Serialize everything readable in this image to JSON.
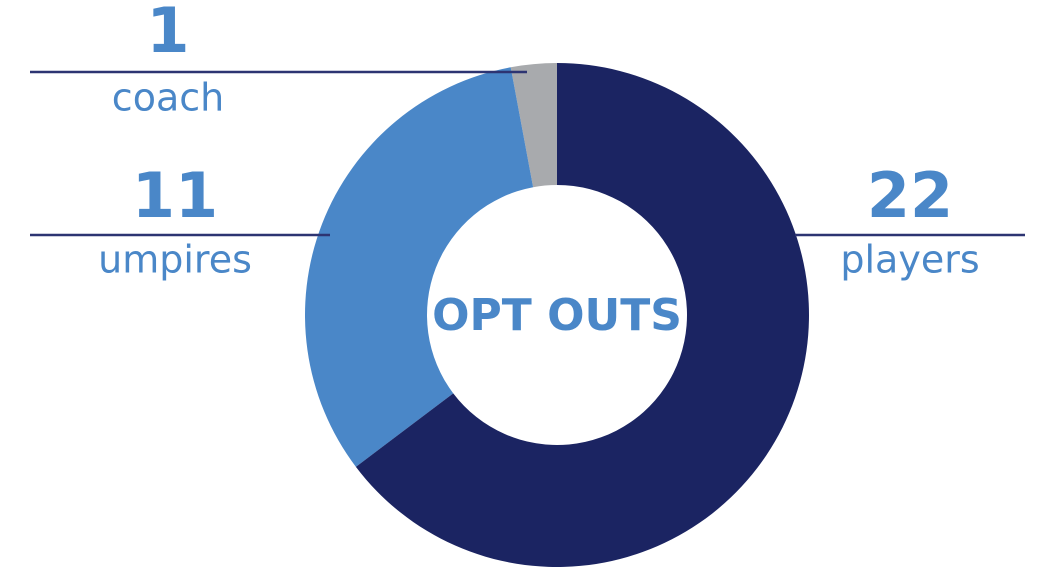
{
  "chart_data": {
    "type": "donut",
    "center_label": "OPT OUTS",
    "categories": [
      "players",
      "umpires",
      "coach"
    ],
    "values": [
      22,
      11,
      1
    ],
    "colors": [
      "#1b2462",
      "#4a87c8",
      "#a8aaad"
    ]
  }
}
